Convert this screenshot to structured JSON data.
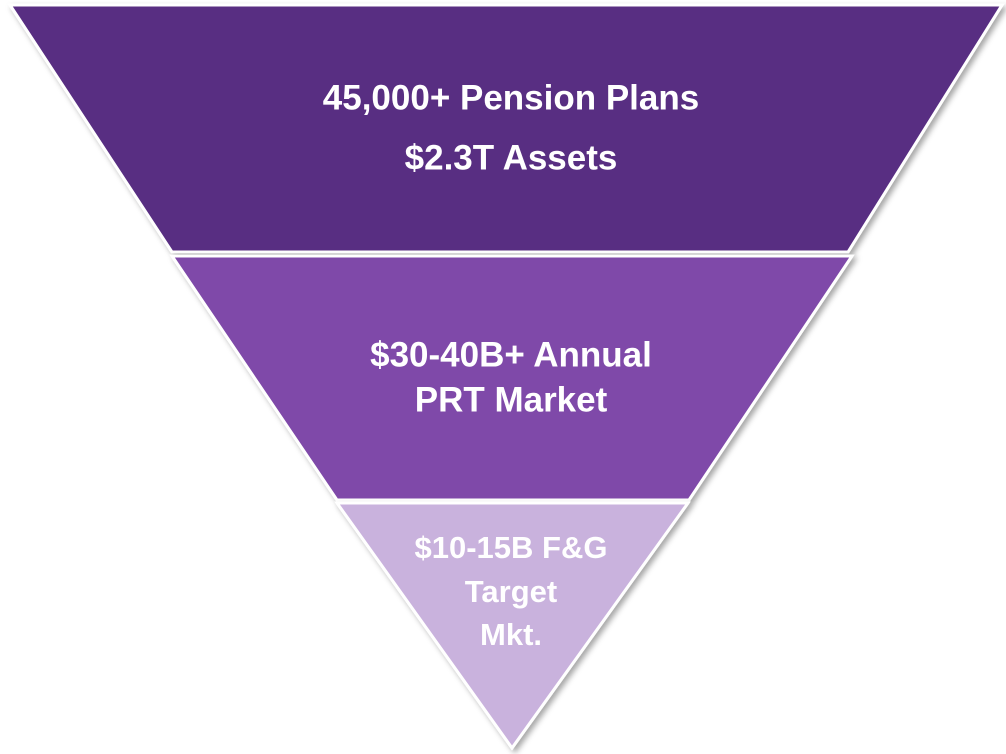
{
  "levels": [
    {
      "lines": [
        "45,000+ Pension Plans",
        "$2.3T Assets"
      ]
    },
    {
      "lines": [
        "$30-40B+ Annual",
        "PRT Market"
      ]
    },
    {
      "lines": [
        "$10-15B F&G",
        "Target",
        "Mkt."
      ]
    }
  ]
}
